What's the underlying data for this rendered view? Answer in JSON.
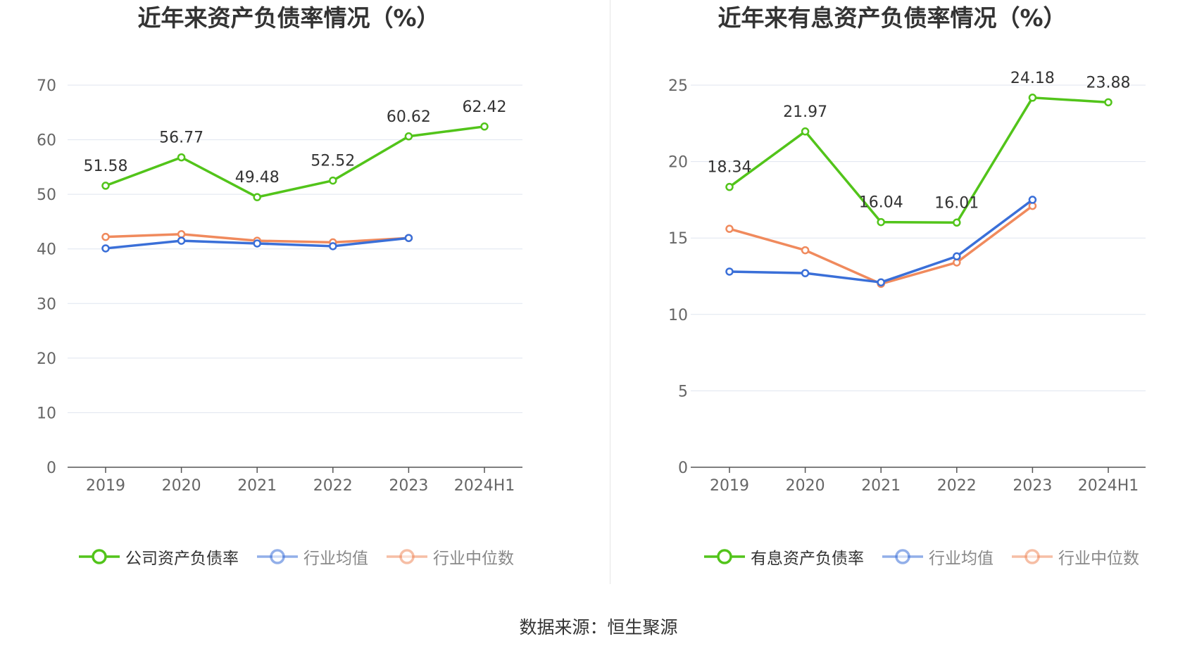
{
  "source_label": "数据来源：恒生聚源",
  "chart_data": [
    {
      "type": "line",
      "title": "近年来资产负债率情况（%）",
      "xlabel": "",
      "ylabel": "",
      "categories": [
        "2019",
        "2020",
        "2021",
        "2022",
        "2023",
        "2024H1"
      ],
      "ylim": [
        0,
        70
      ],
      "yticks": [
        0,
        10,
        20,
        30,
        40,
        50,
        60,
        70
      ],
      "grid": true,
      "legend_position": "bottom",
      "series": [
        {
          "name": "公司资产负债率",
          "color": "#52c41a",
          "labeled": true,
          "values": [
            51.58,
            56.77,
            49.48,
            52.52,
            60.62,
            62.42
          ]
        },
        {
          "name": "行业均值",
          "color": "#3a6fd8",
          "labeled": false,
          "values": [
            40.1,
            41.5,
            41.0,
            40.5,
            42.0,
            null
          ]
        },
        {
          "name": "行业中位数",
          "color": "#f08a5d",
          "labeled": false,
          "values": [
            42.2,
            42.7,
            41.5,
            41.2,
            42.0,
            null
          ]
        }
      ]
    },
    {
      "type": "line",
      "title": "近年来有息资产负债率情况（%）",
      "xlabel": "",
      "ylabel": "",
      "categories": [
        "2019",
        "2020",
        "2021",
        "2022",
        "2023",
        "2024H1"
      ],
      "ylim": [
        0,
        25
      ],
      "yticks": [
        0,
        5,
        10,
        15,
        20,
        25
      ],
      "grid": true,
      "legend_position": "bottom",
      "series": [
        {
          "name": "有息资产负债率",
          "color": "#52c41a",
          "labeled": true,
          "values": [
            18.34,
            21.97,
            16.04,
            16.01,
            24.18,
            23.88
          ]
        },
        {
          "name": "行业均值",
          "color": "#3a6fd8",
          "labeled": false,
          "values": [
            12.8,
            12.7,
            12.1,
            13.8,
            17.5,
            null
          ]
        },
        {
          "name": "行业中位数",
          "color": "#f08a5d",
          "labeled": false,
          "values": [
            15.6,
            14.2,
            12.0,
            13.4,
            17.1,
            null
          ]
        }
      ]
    }
  ]
}
